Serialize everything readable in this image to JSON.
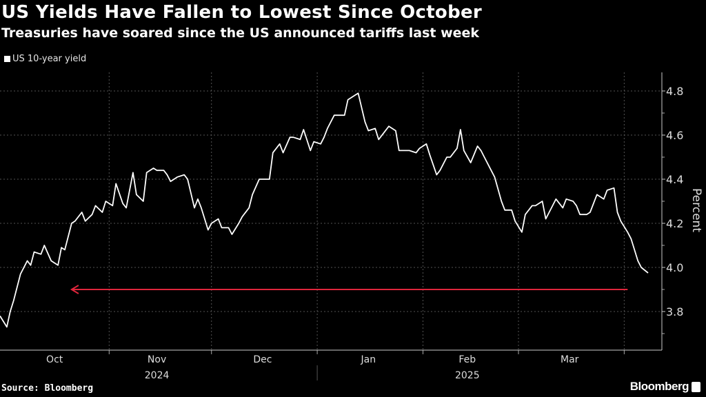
{
  "header": {
    "title": "US Yields Have Fallen to Lowest Since October",
    "subtitle": "Treasuries have soared since the US announced tariffs last week"
  },
  "footer": {
    "source": "Source: Bloomberg",
    "logo": "Bloomberg"
  },
  "chart_data": {
    "type": "line",
    "title": "US Yields Have Fallen to Lowest Since October",
    "subtitle": "Treasuries have soared since the US announced tariffs last week",
    "ylabel": "Percent",
    "xlabel": "",
    "ylim": [
      3.62,
      4.88
    ],
    "xlim": [
      "2024-09-30",
      "2025-04-08"
    ],
    "y_ticks": [
      3.8,
      4.0,
      4.2,
      4.4,
      4.6,
      4.8
    ],
    "y_tick_labels": [
      "3.8",
      "4.0",
      "4.2",
      "4.4",
      "4.6",
      "4.8"
    ],
    "x_tick_labels": [
      {
        "label": "Oct",
        "date": "2024-10-16"
      },
      {
        "label": "Nov",
        "date": "2024-11-15"
      },
      {
        "label": "Dec",
        "date": "2024-12-16"
      },
      {
        "label": "Jan",
        "date": "2025-01-16"
      },
      {
        "label": "Feb",
        "date": "2025-02-14"
      },
      {
        "label": "Mar",
        "date": "2025-03-16"
      }
    ],
    "month_boundaries": [
      "2024-11-01",
      "2024-12-01",
      "2025-01-01",
      "2025-02-01",
      "2025-03-01",
      "2025-04-01"
    ],
    "year_labels": [
      {
        "label": "2024",
        "date": "2024-11-15"
      },
      {
        "label": "2025",
        "date": "2025-02-14"
      }
    ],
    "grid": true,
    "legend_placement": "top-left",
    "colors": {
      "series": "#ffffff",
      "annotation": "#e0263c",
      "background": "#000000"
    },
    "annotation": {
      "type": "arrow",
      "direction": "left",
      "y": 3.9,
      "from": "2025-04-02",
      "to": "2024-10-21"
    },
    "series": [
      {
        "name": "US 10-year yield",
        "points": [
          [
            "2024-09-30",
            3.78
          ],
          [
            "2024-10-02",
            3.73
          ],
          [
            "2024-10-03",
            3.8
          ],
          [
            "2024-10-04",
            3.85
          ],
          [
            "2024-10-06",
            3.97
          ],
          [
            "2024-10-08",
            4.03
          ],
          [
            "2024-10-09",
            4.01
          ],
          [
            "2024-10-10",
            4.07
          ],
          [
            "2024-10-12",
            4.06
          ],
          [
            "2024-10-13",
            4.1
          ],
          [
            "2024-10-15",
            4.03
          ],
          [
            "2024-10-17",
            4.01
          ],
          [
            "2024-10-18",
            4.09
          ],
          [
            "2024-10-19",
            4.08
          ],
          [
            "2024-10-21",
            4.2
          ],
          [
            "2024-10-22",
            4.21
          ],
          [
            "2024-10-24",
            4.25
          ],
          [
            "2024-10-25",
            4.21
          ],
          [
            "2024-10-27",
            4.24
          ],
          [
            "2024-10-28",
            4.28
          ],
          [
            "2024-10-30",
            4.25
          ],
          [
            "2024-10-31",
            4.3
          ],
          [
            "2024-11-02",
            4.28
          ],
          [
            "2024-11-03",
            4.38
          ],
          [
            "2024-11-05",
            4.29
          ],
          [
            "2024-11-06",
            4.27
          ],
          [
            "2024-11-08",
            4.43
          ],
          [
            "2024-11-09",
            4.33
          ],
          [
            "2024-11-11",
            4.3
          ],
          [
            "2024-11-12",
            4.43
          ],
          [
            "2024-11-14",
            4.45
          ],
          [
            "2024-11-15",
            4.44
          ],
          [
            "2024-11-17",
            4.44
          ],
          [
            "2024-11-18",
            4.42
          ],
          [
            "2024-11-19",
            4.39
          ],
          [
            "2024-11-21",
            4.41
          ],
          [
            "2024-11-23",
            4.42
          ],
          [
            "2024-11-24",
            4.4
          ],
          [
            "2024-11-26",
            4.27
          ],
          [
            "2024-11-27",
            4.31
          ],
          [
            "2024-11-28",
            4.27
          ],
          [
            "2024-11-30",
            4.17
          ],
          [
            "2024-12-01",
            4.2
          ],
          [
            "2024-12-03",
            4.22
          ],
          [
            "2024-12-04",
            4.18
          ],
          [
            "2024-12-06",
            4.18
          ],
          [
            "2024-12-07",
            4.15
          ],
          [
            "2024-12-09",
            4.2
          ],
          [
            "2024-12-10",
            4.23
          ],
          [
            "2024-12-12",
            4.27
          ],
          [
            "2024-12-13",
            4.33
          ],
          [
            "2024-12-15",
            4.4
          ],
          [
            "2024-12-18",
            4.4
          ],
          [
            "2024-12-19",
            4.52
          ],
          [
            "2024-12-21",
            4.56
          ],
          [
            "2024-12-22",
            4.52
          ],
          [
            "2024-12-24",
            4.59
          ],
          [
            "2024-12-25",
            4.59
          ],
          [
            "2024-12-27",
            4.58
          ],
          [
            "2024-12-28",
            4.625
          ],
          [
            "2024-12-30",
            4.53
          ],
          [
            "2024-12-31",
            4.57
          ],
          [
            "2025-01-02",
            4.56
          ],
          [
            "2025-01-03",
            4.59
          ],
          [
            "2025-01-04",
            4.63
          ],
          [
            "2025-01-06",
            4.69
          ],
          [
            "2025-01-09",
            4.69
          ],
          [
            "2025-01-10",
            4.76
          ],
          [
            "2025-01-12",
            4.78
          ],
          [
            "2025-01-13",
            4.79
          ],
          [
            "2025-01-15",
            4.66
          ],
          [
            "2025-01-16",
            4.62
          ],
          [
            "2025-01-18",
            4.63
          ],
          [
            "2025-01-19",
            4.58
          ],
          [
            "2025-01-22",
            4.64
          ],
          [
            "2025-01-24",
            4.62
          ],
          [
            "2025-01-25",
            4.53
          ],
          [
            "2025-01-28",
            4.53
          ],
          [
            "2025-01-30",
            4.52
          ],
          [
            "2025-01-31",
            4.54
          ],
          [
            "2025-02-02",
            4.56
          ],
          [
            "2025-02-03",
            4.51
          ],
          [
            "2025-02-05",
            4.42
          ],
          [
            "2025-02-06",
            4.44
          ],
          [
            "2025-02-08",
            4.5
          ],
          [
            "2025-02-09",
            4.5
          ],
          [
            "2025-02-11",
            4.54
          ],
          [
            "2025-02-12",
            4.625
          ],
          [
            "2025-02-13",
            4.53
          ],
          [
            "2025-02-15",
            4.475
          ],
          [
            "2025-02-17",
            4.55
          ],
          [
            "2025-02-18",
            4.53
          ],
          [
            "2025-02-19",
            4.5
          ],
          [
            "2025-02-21",
            4.44
          ],
          [
            "2025-02-22",
            4.41
          ],
          [
            "2025-02-24",
            4.3
          ],
          [
            "2025-02-25",
            4.26
          ],
          [
            "2025-02-27",
            4.26
          ],
          [
            "2025-02-28",
            4.21
          ],
          [
            "2025-03-02",
            4.16
          ],
          [
            "2025-03-03",
            4.24
          ],
          [
            "2025-03-05",
            4.28
          ],
          [
            "2025-03-06",
            4.28
          ],
          [
            "2025-03-08",
            4.3
          ],
          [
            "2025-03-09",
            4.22
          ],
          [
            "2025-03-11",
            4.28
          ],
          [
            "2025-03-12",
            4.31
          ],
          [
            "2025-03-14",
            4.27
          ],
          [
            "2025-03-15",
            4.31
          ],
          [
            "2025-03-17",
            4.3
          ],
          [
            "2025-03-18",
            4.28
          ],
          [
            "2025-03-19",
            4.24
          ],
          [
            "2025-03-21",
            4.24
          ],
          [
            "2025-03-22",
            4.25
          ],
          [
            "2025-03-24",
            4.33
          ],
          [
            "2025-03-26",
            4.31
          ],
          [
            "2025-03-27",
            4.35
          ],
          [
            "2025-03-29",
            4.36
          ],
          [
            "2025-03-30",
            4.25
          ],
          [
            "2025-03-31",
            4.21
          ],
          [
            "2025-04-02",
            4.16
          ],
          [
            "2025-04-03",
            4.13
          ],
          [
            "2025-04-05",
            4.03
          ],
          [
            "2025-04-06",
            4.0
          ],
          [
            "2025-04-08",
            3.975
          ]
        ]
      }
    ]
  }
}
